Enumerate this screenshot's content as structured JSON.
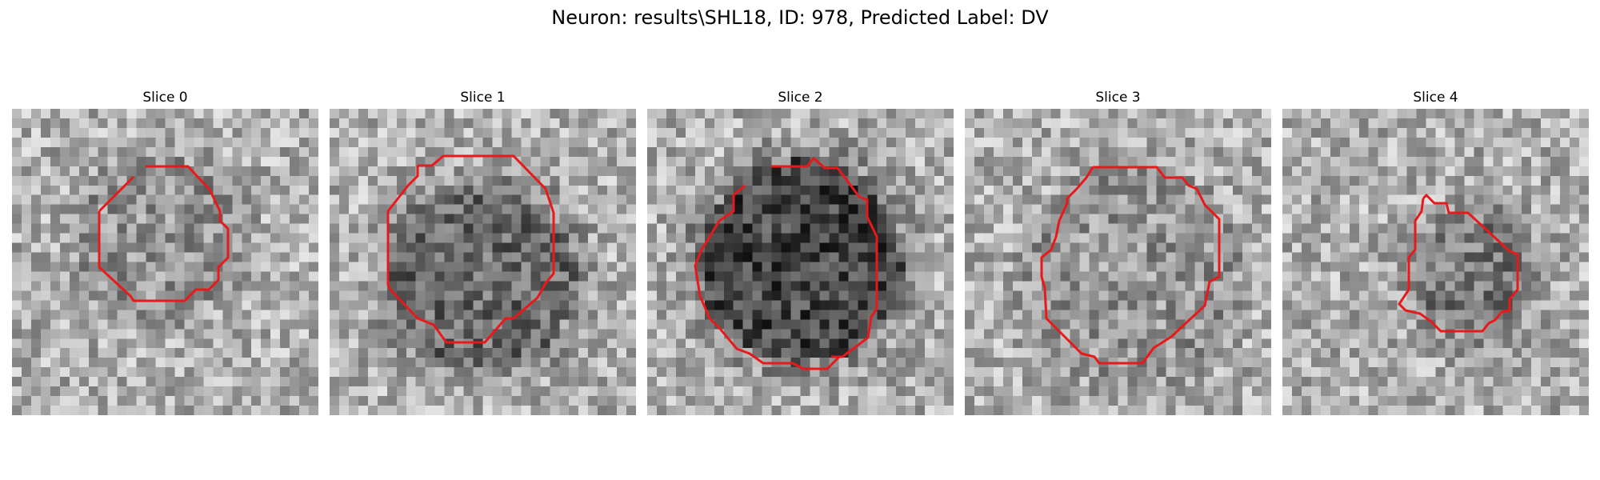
{
  "figure": {
    "title": "Neuron: results\\SHL18, ID: 978, Predicted Label: DV",
    "outline_color": "#e8191b",
    "slices": [
      {
        "title": "Slice 0"
      },
      {
        "title": "Slice 1"
      },
      {
        "title": "Slice 2"
      },
      {
        "title": "Slice 3"
      },
      {
        "title": "Slice 4"
      }
    ]
  }
}
